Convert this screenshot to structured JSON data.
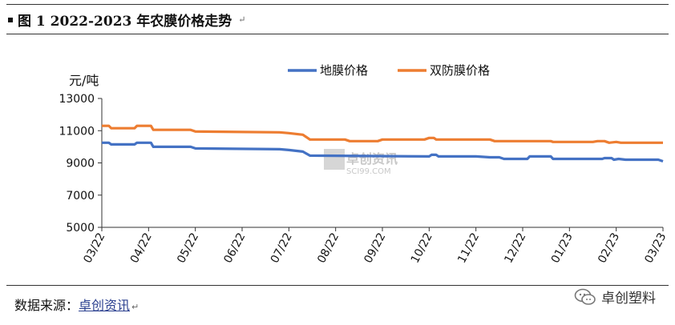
{
  "header": {
    "title": "图 1 2022-2023 年农膜价格走势",
    "para_mark": "↵"
  },
  "footer": {
    "source_prefix": "数据来源：",
    "source_name": "卓创资讯",
    "para_mark": "↵",
    "brand": "卓创塑料"
  },
  "watermark": {
    "main": "卓创资讯",
    "sub": "SCI99.COM"
  },
  "colors": {
    "series_1": "#4472c4",
    "series_2": "#ed7d31"
  },
  "chart_data": {
    "type": "line",
    "ylabel": "元/吨",
    "ylim": [
      5000,
      13000
    ],
    "yticks": [
      5000,
      7000,
      9000,
      11000,
      13000
    ],
    "x_tick_labels": [
      "03/22",
      "04/22",
      "05/22",
      "06/22",
      "07/22",
      "08/22",
      "09/22",
      "10/22",
      "11/22",
      "12/22",
      "01/23",
      "02/23",
      "03/23"
    ],
    "x_range": [
      0,
      12
    ],
    "legend_position": "top-center",
    "grid": false,
    "series": [
      {
        "name": "地膜价格",
        "color": "#4472c4",
        "points": [
          [
            0.0,
            10250
          ],
          [
            0.15,
            10250
          ],
          [
            0.2,
            10150
          ],
          [
            0.7,
            10150
          ],
          [
            0.75,
            10250
          ],
          [
            1.05,
            10250
          ],
          [
            1.1,
            10000
          ],
          [
            1.9,
            10000
          ],
          [
            2.0,
            9900
          ],
          [
            3.8,
            9850
          ],
          [
            4.0,
            9800
          ],
          [
            4.3,
            9700
          ],
          [
            4.45,
            9450
          ],
          [
            7.0,
            9400
          ],
          [
            7.05,
            9500
          ],
          [
            7.15,
            9500
          ],
          [
            7.2,
            9400
          ],
          [
            8.0,
            9400
          ],
          [
            8.3,
            9350
          ],
          [
            8.5,
            9350
          ],
          [
            8.6,
            9250
          ],
          [
            9.1,
            9250
          ],
          [
            9.15,
            9400
          ],
          [
            9.6,
            9400
          ],
          [
            9.65,
            9250
          ],
          [
            10.5,
            9250
          ],
          [
            10.7,
            9250
          ],
          [
            10.75,
            9300
          ],
          [
            10.9,
            9300
          ],
          [
            10.95,
            9200
          ],
          [
            11.05,
            9250
          ],
          [
            11.2,
            9200
          ],
          [
            11.5,
            9200
          ],
          [
            11.9,
            9200
          ],
          [
            12.0,
            9100
          ]
        ]
      },
      {
        "name": "双防膜价格",
        "color": "#ed7d31",
        "points": [
          [
            0.0,
            11300
          ],
          [
            0.15,
            11300
          ],
          [
            0.2,
            11150
          ],
          [
            0.7,
            11150
          ],
          [
            0.75,
            11300
          ],
          [
            1.05,
            11300
          ],
          [
            1.1,
            11050
          ],
          [
            1.9,
            11050
          ],
          [
            2.0,
            10950
          ],
          [
            3.8,
            10900
          ],
          [
            4.0,
            10850
          ],
          [
            4.3,
            10750
          ],
          [
            4.45,
            10450
          ],
          [
            5.2,
            10450
          ],
          [
            5.3,
            10350
          ],
          [
            5.9,
            10350
          ],
          [
            6.0,
            10450
          ],
          [
            6.9,
            10450
          ],
          [
            7.0,
            10550
          ],
          [
            7.1,
            10550
          ],
          [
            7.15,
            10450
          ],
          [
            8.3,
            10450
          ],
          [
            8.4,
            10350
          ],
          [
            9.6,
            10350
          ],
          [
            9.65,
            10300
          ],
          [
            10.5,
            10300
          ],
          [
            10.6,
            10350
          ],
          [
            10.75,
            10350
          ],
          [
            10.85,
            10250
          ],
          [
            11.0,
            10300
          ],
          [
            11.1,
            10250
          ],
          [
            11.5,
            10250
          ],
          [
            12.0,
            10250
          ]
        ]
      }
    ]
  }
}
